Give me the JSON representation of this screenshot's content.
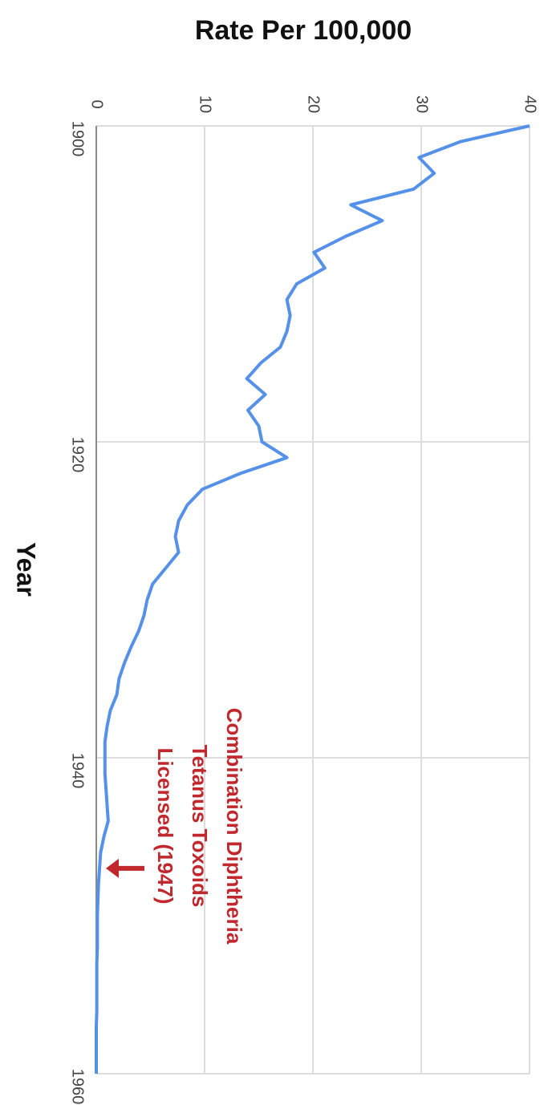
{
  "chart_data": {
    "type": "line",
    "title": "Rate Per 100,000",
    "x_label": "Year",
    "x": [
      1900,
      1901,
      1902,
      1903,
      1904,
      1905,
      1906,
      1907,
      1908,
      1909,
      1910,
      1911,
      1912,
      1913,
      1914,
      1915,
      1916,
      1917,
      1918,
      1919,
      1920,
      1921,
      1922,
      1923,
      1924,
      1925,
      1926,
      1927,
      1928,
      1929,
      1930,
      1931,
      1932,
      1933,
      1934,
      1935,
      1936,
      1937,
      1938,
      1939,
      1940,
      1941,
      1942,
      1943,
      1944,
      1945,
      1946,
      1947,
      1948,
      1949,
      1950,
      1951,
      1952,
      1953,
      1954,
      1955,
      1956,
      1957,
      1958,
      1959,
      1960
    ],
    "series": [
      {
        "name": "Rate",
        "color": "#5591e8",
        "values": [
          40,
          33.6,
          29.8,
          31.2,
          29.3,
          23.5,
          26.4,
          23,
          20.1,
          21.1,
          18.5,
          17.6,
          17.9,
          17.6,
          17,
          15.2,
          13.9,
          15.6,
          14,
          15,
          15.3,
          17.6,
          13.3,
          9.8,
          8.4,
          7.6,
          7.3,
          7.6,
          6.4,
          5.2,
          4.7,
          4.4,
          3.9,
          3.2,
          2.6,
          2.1,
          1.9,
          1.3,
          1,
          0.8,
          0.8,
          0.8,
          0.9,
          1,
          1.1,
          0.7,
          0.4,
          0.3,
          0.2,
          0.15,
          0.1,
          0.1,
          0.1,
          0.05,
          0.05,
          0.05,
          0.05,
          0,
          0,
          0,
          0
        ]
      }
    ],
    "xlim": [
      1900,
      1960
    ],
    "xticks": [
      1900,
      1920,
      1940,
      1960
    ],
    "ylim": [
      0,
      40
    ],
    "yticks": [
      0,
      10,
      20,
      30,
      40
    ],
    "grid": true,
    "orientation": "rotated",
    "annotation": {
      "lines": [
        "Combination Diphtheria",
        "Tetanus Toxoids",
        "Licensed (1947)"
      ],
      "x": 1947,
      "color": "#c0282d"
    }
  }
}
